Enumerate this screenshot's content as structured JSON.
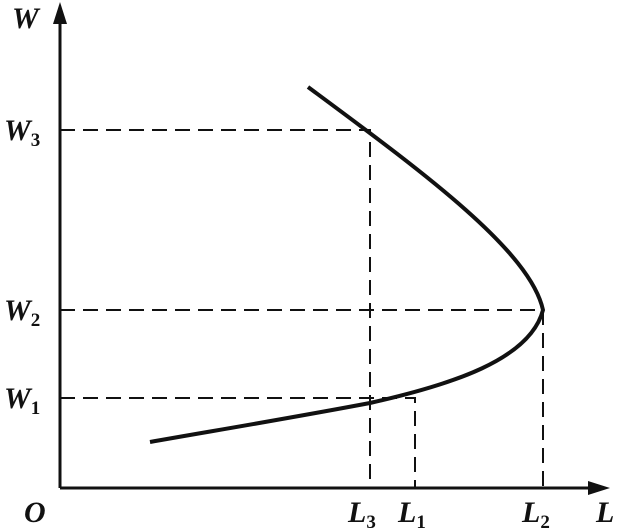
{
  "y_axis": {
    "label": "W"
  },
  "x_axis": {
    "label": "L"
  },
  "origin": "O",
  "w_levels": [
    {
      "base": "W",
      "sub": "3"
    },
    {
      "base": "W",
      "sub": "2"
    },
    {
      "base": "W",
      "sub": "1"
    }
  ],
  "l_levels": [
    {
      "base": "L",
      "sub": "3"
    },
    {
      "base": "L",
      "sub": "1"
    },
    {
      "base": "L",
      "sub": "2"
    }
  ]
}
